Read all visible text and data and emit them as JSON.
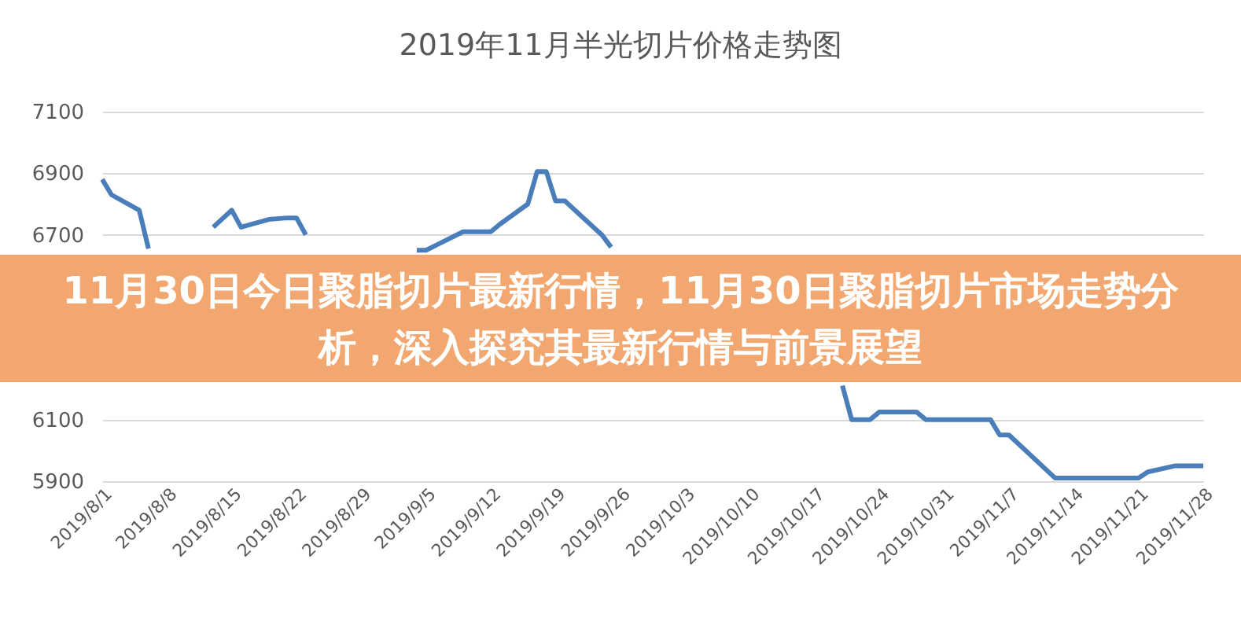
{
  "chart_data": {
    "type": "line",
    "title": "2019年11月半光切片价格走势图",
    "annotations": [
      "11月30日今日聚脂切片最新行情，11月30日聚脂切片市场走势分析，深入探究其最新行情与前景展望"
    ],
    "x": [
      "2019-08-01",
      "2019-08-02",
      "2019-08-05",
      "2019-08-06",
      "2019-08-09",
      "2019-08-13",
      "2019-08-15",
      "2019-08-16",
      "2019-08-19",
      "2019-08-21",
      "2019-08-22",
      "2019-08-23",
      "2019-08-30",
      "2019-09-04",
      "2019-09-05",
      "2019-09-06",
      "2019-09-09",
      "2019-09-12",
      "2019-09-13",
      "2019-09-16",
      "2019-09-17",
      "2019-09-18",
      "2019-09-19",
      "2019-09-20",
      "2019-09-24",
      "2019-09-25",
      "2019-10-08",
      "2019-10-20",
      "2019-10-21",
      "2019-10-23",
      "2019-10-24",
      "2019-10-28",
      "2019-10-29",
      "2019-11-05",
      "2019-11-06",
      "2019-11-07",
      "2019-11-12",
      "2019-11-21",
      "2019-11-22",
      "2019-11-25",
      "2019-11-28"
    ],
    "series": [
      {
        "color": "#4a7ebb",
        "values": [
          6880,
          6830,
          6780,
          6655,
          null,
          6725,
          6780,
          6725,
          6750,
          6755,
          6755,
          6700,
          null,
          6650,
          6650,
          6665,
          6710,
          6710,
          6735,
          6800,
          6905,
          6905,
          6810,
          6810,
          6700,
          6660,
          null,
          6210,
          6100,
          6100,
          6125,
          6125,
          6100,
          6100,
          6050,
          6050,
          5910,
          5910,
          5930,
          5950,
          5950
        ]
      }
    ],
    "xlim": [
      "2019-08-01",
      "2019-11-28"
    ],
    "xticks": [
      {
        "value": "2019-08-01",
        "label": "2019/8/1"
      },
      {
        "value": "2019-08-08",
        "label": "2019/8/8"
      },
      {
        "value": "2019-08-15",
        "label": "2019/8/15"
      },
      {
        "value": "2019-08-22",
        "label": "2019/8/22"
      },
      {
        "value": "2019-08-29",
        "label": "2019/8/29"
      },
      {
        "value": "2019-09-05",
        "label": "2019/9/5"
      },
      {
        "value": "2019-09-12",
        "label": "2019/9/12"
      },
      {
        "value": "2019-09-19",
        "label": "2019/9/19"
      },
      {
        "value": "2019-09-26",
        "label": "2019/9/26"
      },
      {
        "value": "2019-10-03",
        "label": "2019/10/3"
      },
      {
        "value": "2019-10-10",
        "label": "2019/10/10"
      },
      {
        "value": "2019-10-17",
        "label": "2019/10/17"
      },
      {
        "value": "2019-10-24",
        "label": "2019/10/24"
      },
      {
        "value": "2019-10-31",
        "label": "2019/10/31"
      },
      {
        "value": "2019-11-07",
        "label": "2019/11/7"
      },
      {
        "value": "2019-11-14",
        "label": "2019/11/14"
      },
      {
        "value": "2019-11-21",
        "label": "2019/11/21"
      },
      {
        "value": "2019-11-28",
        "label": "2019/11/28"
      }
    ],
    "ylim": [
      5900,
      7100
    ],
    "yticks": [
      5900,
      6100,
      6700,
      6900,
      7100
    ],
    "grid": "y",
    "marker": "none",
    "line_style": "solid"
  }
}
